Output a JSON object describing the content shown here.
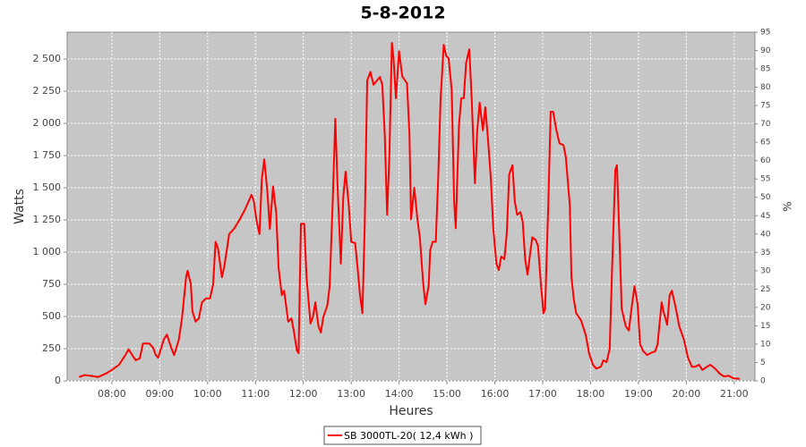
{
  "chart_data": {
    "type": "line",
    "title": "5-8-2012",
    "xlabel": "Heures",
    "ylabel": "Watts",
    "y2label": "%",
    "x": [
      "07:19",
      "07:26",
      "07:38",
      "07:43",
      "07:52",
      "08:00",
      "08:09",
      "08:17",
      "08:21",
      "08:26",
      "08:30",
      "08:35",
      "08:39",
      "08:47",
      "08:52",
      "08:55",
      "08:58",
      "09:05",
      "09:09",
      "09:14",
      "09:18",
      "09:24",
      "09:28",
      "09:33",
      "09:35",
      "09:39",
      "09:41",
      "09:45",
      "09:49",
      "09:53",
      "09:58",
      "10:03",
      "10:07",
      "10:10",
      "10:13",
      "10:18",
      "10:21",
      "10:27",
      "10:33",
      "10:40",
      "10:46",
      "10:50",
      "10:55",
      "10:58",
      "11:01",
      "11:05",
      "11:08",
      "11:11",
      "11:15",
      "11:18",
      "11:22",
      "11:26",
      "11:29",
      "11:33",
      "11:36",
      "11:41",
      "11:45",
      "11:48",
      "11:52",
      "11:54",
      "11:57",
      "12:01",
      "12:04",
      "12:09",
      "12:12",
      "12:15",
      "12:19",
      "12:22",
      "12:25",
      "12:30",
      "12:33",
      "12:37",
      "12:40",
      "12:43",
      "12:47",
      "12:50",
      "12:53",
      "12:57",
      "13:00",
      "13:05",
      "13:08",
      "13:11",
      "13:14",
      "13:17",
      "13:20",
      "13:24",
      "13:28",
      "13:32",
      "13:36",
      "13:39",
      "13:42",
      "13:45",
      "13:48",
      "13:51",
      "13:53",
      "13:56",
      "14:00",
      "14:04",
      "14:10",
      "14:13",
      "14:15",
      "14:19",
      "14:23",
      "14:26",
      "14:30",
      "14:33",
      "14:37",
      "14:39",
      "14:42",
      "14:46",
      "14:49",
      "14:52",
      "14:56",
      "14:59",
      "15:02",
      "15:06",
      "15:09",
      "15:11",
      "15:15",
      "15:18",
      "15:21",
      "15:24",
      "15:28",
      "15:31",
      "15:35",
      "15:38",
      "15:41",
      "15:45",
      "15:48",
      "15:51",
      "15:55",
      "15:58",
      "16:02",
      "16:05",
      "16:08",
      "16:12",
      "16:15",
      "16:18",
      "16:22",
      "16:25",
      "16:28",
      "16:32",
      "16:35",
      "16:38",
      "16:41",
      "16:44",
      "16:47",
      "16:51",
      "16:54",
      "16:58",
      "17:01",
      "17:03",
      "17:07",
      "17:10",
      "17:13",
      "17:17",
      "17:21",
      "17:26",
      "17:29",
      "17:34",
      "17:36",
      "17:39",
      "17:42",
      "17:48",
      "17:54",
      "17:58",
      "18:03",
      "18:07",
      "18:13",
      "18:16",
      "18:20",
      "18:24",
      "18:27",
      "18:31",
      "18:33",
      "18:36",
      "18:39",
      "18:44",
      "18:48",
      "18:52",
      "18:55",
      "18:59",
      "19:02",
      "19:06",
      "19:11",
      "19:15",
      "19:21",
      "19:24",
      "19:29",
      "19:32",
      "19:36",
      "19:39",
      "19:42",
      "19:47",
      "19:51",
      "19:57",
      "20:02",
      "20:07",
      "20:11",
      "20:16",
      "20:20",
      "20:26",
      "20:30",
      "20:36",
      "20:42",
      "20:47",
      "20:53",
      "20:59",
      "21:07"
    ],
    "series": [
      {
        "name": "SB 3000TL-20( 12,4 kWh )",
        "color": "#ff0000",
        "values": [
          30,
          45,
          35,
          30,
          55,
          85,
          125,
          200,
          245,
          195,
          160,
          175,
          290,
          290,
          255,
          200,
          180,
          320,
          360,
          265,
          200,
          320,
          490,
          805,
          855,
          750,
          540,
          460,
          485,
          610,
          640,
          640,
          750,
          1080,
          1030,
          805,
          890,
          1140,
          1180,
          1250,
          1320,
          1375,
          1445,
          1395,
          1255,
          1140,
          1570,
          1720,
          1465,
          1180,
          1510,
          1305,
          875,
          665,
          700,
          460,
          485,
          390,
          235,
          215,
          1220,
          1220,
          805,
          445,
          495,
          610,
          425,
          375,
          495,
          585,
          735,
          1430,
          2035,
          1500,
          910,
          1430,
          1625,
          1360,
          1080,
          1070,
          875,
          665,
          525,
          1220,
          2330,
          2400,
          2300,
          2330,
          2360,
          2300,
          1915,
          1290,
          1775,
          2625,
          2505,
          2195,
          2560,
          2365,
          2310,
          1915,
          1255,
          1500,
          1255,
          1115,
          770,
          595,
          735,
          1015,
          1080,
          1080,
          1570,
          2195,
          2610,
          2525,
          2505,
          2260,
          1395,
          1185,
          1985,
          2195,
          2195,
          2470,
          2575,
          2195,
          1535,
          1945,
          2160,
          1945,
          2125,
          1915,
          1570,
          1185,
          910,
          860,
          965,
          945,
          1150,
          1605,
          1675,
          1395,
          1290,
          1310,
          1235,
          945,
          825,
          980,
          1115,
          1095,
          1050,
          735,
          525,
          560,
          1360,
          2090,
          2090,
          1950,
          1845,
          1830,
          1740,
          1360,
          805,
          630,
          525,
          470,
          355,
          215,
          125,
          95,
          110,
          160,
          145,
          250,
          875,
          1640,
          1675,
          1150,
          560,
          425,
          390,
          595,
          735,
          595,
          285,
          230,
          200,
          215,
          230,
          285,
          610,
          525,
          435,
          665,
          700,
          560,
          425,
          320,
          180,
          110,
          110,
          125,
          85,
          110,
          125,
          95,
          55,
          35,
          40,
          20,
          15
        ]
      }
    ],
    "xlim": [
      "07:04",
      "21:26"
    ],
    "xticks": [
      "08:00",
      "09:00",
      "10:00",
      "11:00",
      "12:00",
      "13:00",
      "14:00",
      "15:00",
      "16:00",
      "17:00",
      "18:00",
      "19:00",
      "20:00",
      "21:00"
    ],
    "ylim": [
      0,
      2708
    ],
    "yticks": [
      0,
      250,
      500,
      750,
      {
        "value": 1000,
        "label": "1 000"
      },
      {
        "value": 1250,
        "label": "1 250"
      },
      {
        "value": 1500,
        "label": "1 500"
      },
      {
        "value": 1750,
        "label": "1 750"
      },
      {
        "value": 2000,
        "label": "2 000"
      },
      {
        "value": 2250,
        "label": "2 250"
      },
      {
        "value": 2500,
        "label": "2 500"
      }
    ],
    "y2lim": [
      0,
      95
    ],
    "y2ticks": [
      0,
      5,
      10,
      15,
      20,
      25,
      30,
      35,
      40,
      45,
      50,
      55,
      60,
      65,
      70,
      75,
      80,
      85,
      90,
      95
    ],
    "grid": true
  }
}
